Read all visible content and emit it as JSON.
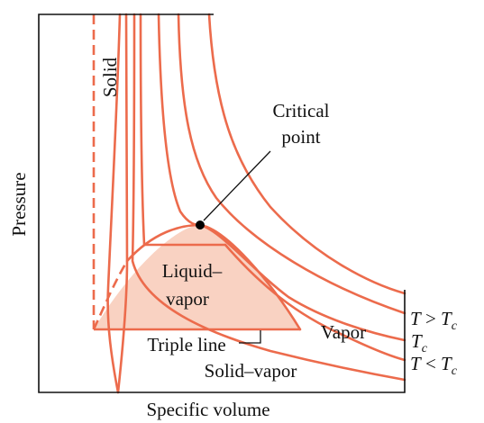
{
  "axes": {
    "x_label": "Specific volume",
    "y_label": "Pressure"
  },
  "regions": {
    "solid": "Solid",
    "liquid_vapor_line1": "Liquid–",
    "liquid_vapor_line2": "vapor",
    "vapor": "Vapor",
    "solid_vapor": "Solid–vapor"
  },
  "annotations": {
    "critical_point_line1": "Critical",
    "critical_point_line2": "point",
    "triple_line": "Triple line"
  },
  "isotherm_labels": {
    "above_critical": {
      "symbol": "T",
      "relation": " > ",
      "sub_base": "T",
      "sub": "c"
    },
    "critical": {
      "base": "T",
      "sub": "c"
    },
    "below_critical": {
      "symbol": "T",
      "relation": " < ",
      "sub_base": "T",
      "sub": "c"
    }
  },
  "colors": {
    "curve": "#ec6b4c",
    "dome_fill": "#f9d2c2",
    "axis": "#111111",
    "point": "#000000"
  }
}
